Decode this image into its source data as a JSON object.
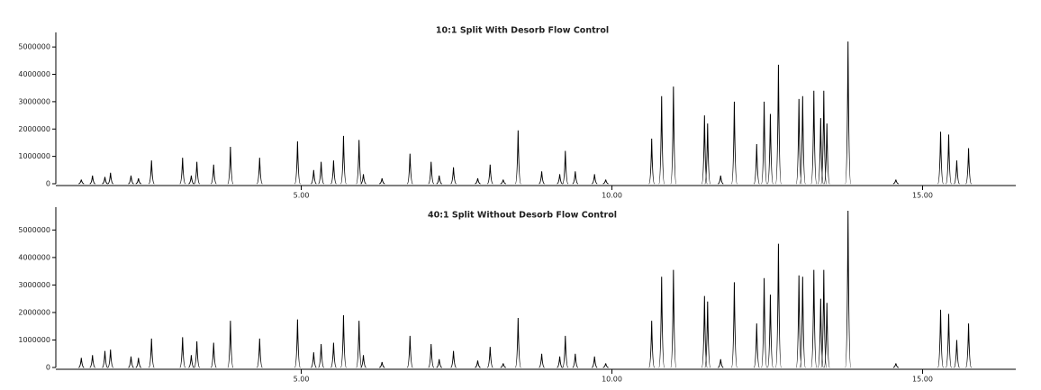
{
  "chart_data": [
    {
      "type": "peaks",
      "title": "10:1 Split With Desorb Flow Control",
      "color": "#000000",
      "x": [
        1.46,
        1.64,
        1.84,
        1.93,
        2.26,
        2.38,
        2.59,
        3.09,
        3.23,
        3.32,
        3.59,
        3.86,
        4.33,
        4.94,
        5.2,
        5.32,
        5.52,
        5.68,
        5.93,
        6.0,
        6.3,
        6.75,
        7.09,
        7.22,
        7.45,
        7.84,
        8.04,
        8.25,
        8.49,
        8.87,
        9.16,
        9.25,
        9.41,
        9.72,
        9.9,
        10.64,
        10.8,
        10.99,
        11.49,
        11.54,
        11.75,
        11.97,
        12.33,
        12.45,
        12.55,
        12.68,
        13.01,
        13.07,
        13.25,
        13.36,
        13.41,
        13.46,
        13.8,
        14.57,
        15.29,
        15.42,
        15.55,
        15.74
      ],
      "values": [
        150000,
        300000,
        250000,
        400000,
        300000,
        200000,
        850000,
        950000,
        300000,
        800000,
        700000,
        1350000,
        950000,
        1550000,
        500000,
        800000,
        850000,
        1750000,
        1600000,
        350000,
        200000,
        1100000,
        800000,
        300000,
        600000,
        200000,
        700000,
        150000,
        1950000,
        450000,
        350000,
        1200000,
        450000,
        350000,
        150000,
        1650000,
        3200000,
        3550000,
        2500000,
        2200000,
        300000,
        3000000,
        1450000,
        3000000,
        2550000,
        4350000,
        3100000,
        3200000,
        3400000,
        2400000,
        3400000,
        2200000,
        5200000,
        150000,
        1900000,
        1800000,
        850000,
        1300000
      ],
      "xlim": [
        1.05,
        16.5
      ],
      "ylim": [
        0,
        5400000
      ],
      "xticks": [
        {
          "value": 5,
          "label": "5.00"
        },
        {
          "value": 10,
          "label": "10.00"
        },
        {
          "value": 15,
          "label": "15.00"
        }
      ],
      "yticks": [
        0,
        1000000,
        2000000,
        3000000,
        4000000,
        5000000
      ]
    },
    {
      "type": "peaks",
      "title": "40:1 Split Without Desorb Flow Control",
      "color": "#000000",
      "x": [
        1.46,
        1.64,
        1.84,
        1.93,
        2.26,
        2.38,
        2.59,
        3.09,
        3.23,
        3.32,
        3.59,
        3.86,
        4.33,
        4.94,
        5.2,
        5.32,
        5.52,
        5.68,
        5.93,
        6.0,
        6.3,
        6.75,
        7.09,
        7.22,
        7.45,
        7.84,
        8.04,
        8.25,
        8.49,
        8.87,
        9.16,
        9.25,
        9.41,
        9.72,
        9.9,
        10.64,
        10.8,
        10.99,
        11.49,
        11.54,
        11.75,
        11.97,
        12.33,
        12.45,
        12.55,
        12.68,
        13.01,
        13.07,
        13.25,
        13.36,
        13.41,
        13.46,
        13.8,
        14.57,
        15.29,
        15.42,
        15.55,
        15.74
      ],
      "values": [
        350000,
        450000,
        600000,
        650000,
        400000,
        350000,
        1050000,
        1100000,
        450000,
        950000,
        900000,
        1700000,
        1050000,
        1750000,
        550000,
        850000,
        900000,
        1900000,
        1700000,
        450000,
        200000,
        1150000,
        850000,
        300000,
        600000,
        250000,
        750000,
        150000,
        1800000,
        500000,
        400000,
        1150000,
        500000,
        400000,
        150000,
        1700000,
        3300000,
        3550000,
        2600000,
        2400000,
        300000,
        3100000,
        1600000,
        3250000,
        2650000,
        4500000,
        3350000,
        3300000,
        3550000,
        2500000,
        3550000,
        2350000,
        5700000,
        150000,
        2100000,
        1950000,
        1000000,
        1600000
      ],
      "xlim": [
        1.05,
        16.5
      ],
      "ylim": [
        0,
        5700000
      ],
      "xticks": [
        {
          "value": 5,
          "label": "5.00"
        },
        {
          "value": 10,
          "label": "10.00"
        },
        {
          "value": 15,
          "label": "15.00"
        }
      ],
      "yticks": [
        0,
        1000000,
        2000000,
        3000000,
        4000000,
        5000000
      ]
    }
  ]
}
